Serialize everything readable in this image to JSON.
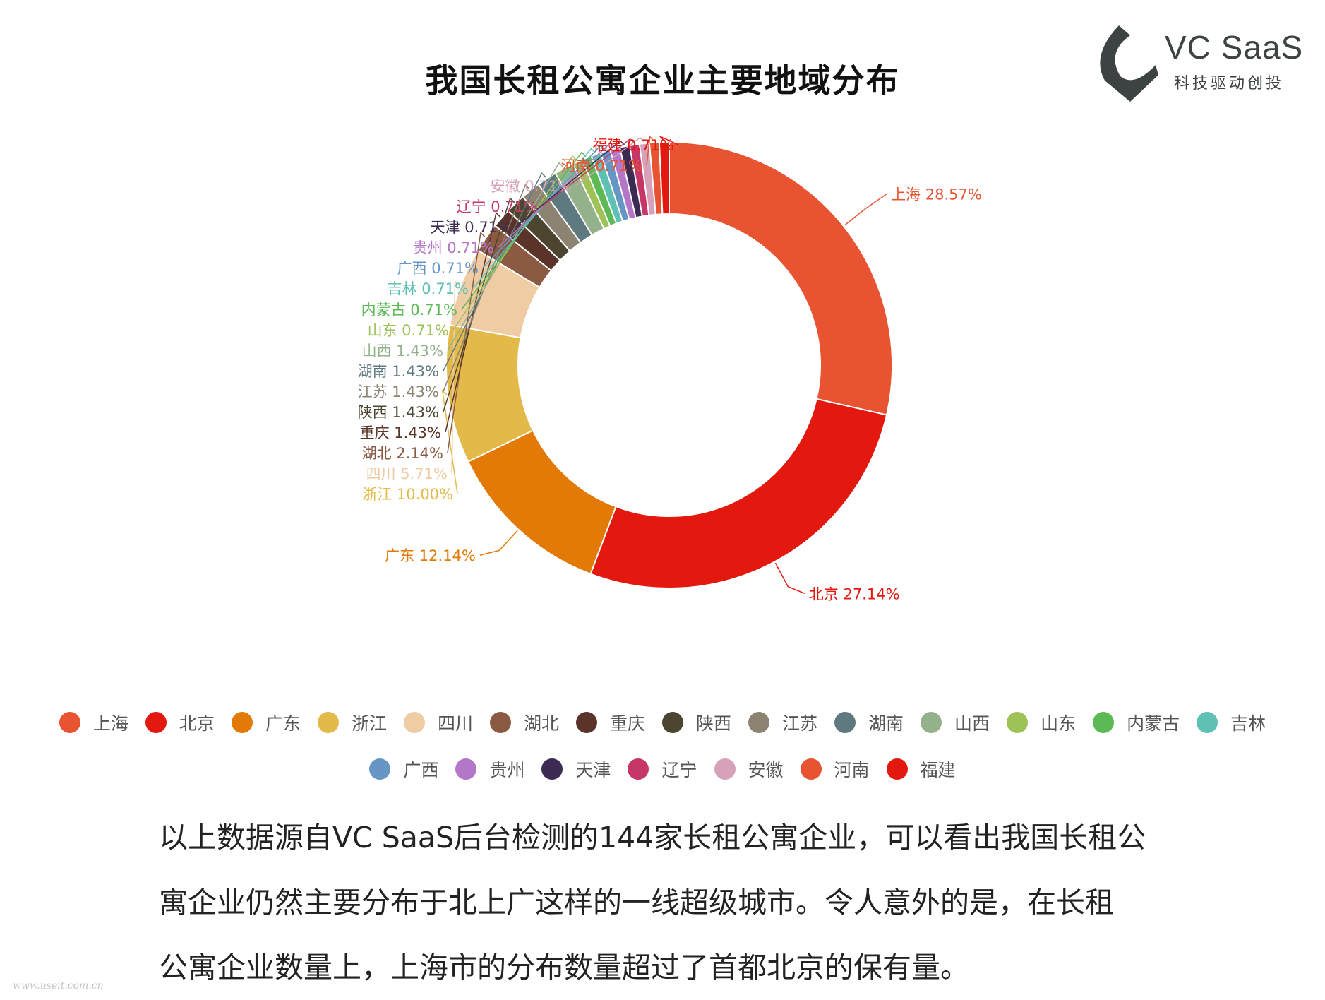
{
  "title": "我国长租公寓企业主要地域分布",
  "logo": {
    "name": "VC SaaS",
    "tagline": "科技驱动创投",
    "colors": {
      "mark": "#3d4243"
    }
  },
  "chart_data": {
    "type": "pie",
    "variant": "donut",
    "title": "我国长租公寓企业主要地域分布",
    "legend_position": "bottom",
    "slices": [
      {
        "name": "上海",
        "value": 28.57,
        "label": "上海 28.57%",
        "color": "#e85432"
      },
      {
        "name": "北京",
        "value": 27.14,
        "label": "北京 27.14%",
        "color": "#e3180f"
      },
      {
        "name": "广东",
        "value": 12.14,
        "label": "广东 12.14%",
        "color": "#e37a07"
      },
      {
        "name": "浙江",
        "value": 10.0,
        "label": "浙江 10.00%",
        "color": "#e3ba4a"
      },
      {
        "name": "四川",
        "value": 5.71,
        "label": "四川 5.71%",
        "color": "#efcca4"
      },
      {
        "name": "湖北",
        "value": 2.14,
        "label": "湖北 2.14%",
        "color": "#8a5a43"
      },
      {
        "name": "重庆",
        "value": 1.43,
        "label": "重庆 1.43%",
        "color": "#5a3428"
      },
      {
        "name": "陕西",
        "value": 1.43,
        "label": "陕西 1.43%",
        "color": "#4c4630"
      },
      {
        "name": "江苏",
        "value": 1.43,
        "label": "江苏 1.43%",
        "color": "#8c8373"
      },
      {
        "name": "湖南",
        "value": 1.43,
        "label": "湖南 1.43%",
        "color": "#5e7980"
      },
      {
        "name": "山西",
        "value": 1.43,
        "label": "山西 1.43%",
        "color": "#93b28c"
      },
      {
        "name": "山东",
        "value": 0.71,
        "label": "山东 0.71%",
        "color": "#9ec256"
      },
      {
        "name": "内蒙古",
        "value": 0.71,
        "label": "内蒙古 0.71%",
        "color": "#5cba55"
      },
      {
        "name": "吉林",
        "value": 0.71,
        "label": "吉林 0.71%",
        "color": "#5fc0b4"
      },
      {
        "name": "广西",
        "value": 0.71,
        "label": "广西 0.71%",
        "color": "#6696c4"
      },
      {
        "name": "贵州",
        "value": 0.71,
        "label": "贵州 0.71%",
        "color": "#b476c6"
      },
      {
        "name": "天津",
        "value": 0.71,
        "label": "天津 0.71%",
        "color": "#3c2b53"
      },
      {
        "name": "辽宁",
        "value": 0.71,
        "label": "辽宁 0.71%",
        "color": "#c63767"
      },
      {
        "name": "安徽",
        "value": 0.71,
        "label": "安徽 0.71%",
        "color": "#d6a1b9"
      },
      {
        "name": "河南",
        "value": 0.71,
        "label": "河南 0.71%",
        "color": "#e85432"
      },
      {
        "name": "福建",
        "value": 0.71,
        "label": "福建 0.71%",
        "color": "#e3180f"
      }
    ]
  },
  "caption": [
    "以上数据源自VC SaaS后台检测的144家长租公寓企业，可以看出我国长租公",
    "寓企业仍然主要分布于北上广这样的一线超级城市。令人意外的是，在长租",
    "公寓企业数量上，上海市的分布数量超过了首都北京的保有量。"
  ],
  "watermark": "www.useit.com.cn"
}
